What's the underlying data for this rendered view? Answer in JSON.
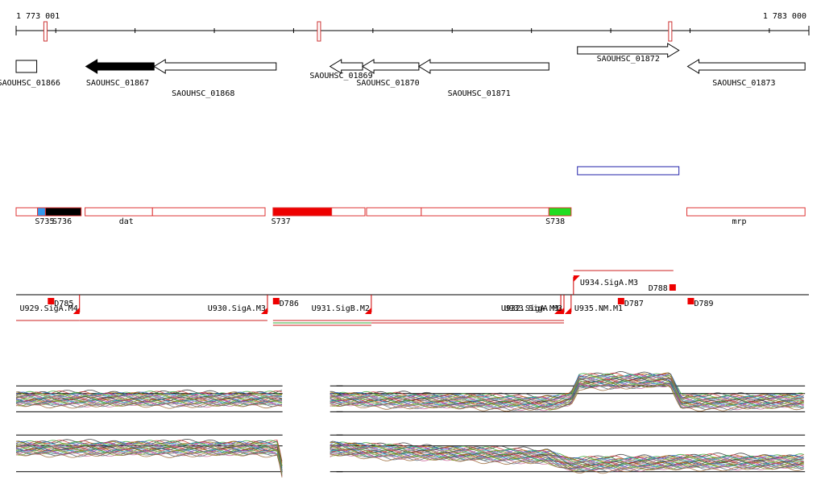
{
  "ruler": {
    "start_label": "1 773 001",
    "end_label": "1 783 000",
    "minor_ticks": [
      1773501,
      1774501,
      1775501,
      1776501,
      1777501,
      1778501,
      1779501,
      1780501,
      1781501,
      1782501
    ],
    "markers": [
      {
        "pos": 1773371,
        "color": "#cc3333"
      },
      {
        "pos": 1776821,
        "color": "#cc3333"
      },
      {
        "pos": 1781251,
        "color": "#cc3333"
      }
    ]
  },
  "genes": [
    {
      "id": "SAOUHSC_01866",
      "start": 1773001,
      "end": 1773261,
      "strand": "+",
      "fill": "#ffffff",
      "label_pos": 1773161,
      "label_row": 1
    },
    {
      "id": "SAOUHSC_01867",
      "start": 1773881,
      "end": 1774741,
      "strand": "-",
      "fill": "#000000",
      "label_pos": 1774281,
      "label_row": 1
    },
    {
      "id": "SAOUHSC_01868",
      "start": 1774741,
      "end": 1776281,
      "strand": "-",
      "fill": "#ffffff",
      "label_pos": 1775361,
      "label_row": 2
    },
    {
      "id": "SAOUHSC_01869",
      "start": 1776961,
      "end": 1777371,
      "strand": "-",
      "fill": "#ffffff",
      "label_pos": 1777101,
      "label_row": 0
    },
    {
      "id": "SAOUHSC_01870",
      "start": 1777371,
      "end": 1778081,
      "strand": "-",
      "fill": "#ffffff",
      "label_pos": 1777691,
      "label_row": 1
    },
    {
      "id": "SAOUHSC_01871",
      "start": 1778081,
      "end": 1779721,
      "strand": "-",
      "fill": "#ffffff",
      "label_pos": 1778841,
      "label_row": 2
    },
    {
      "id": "SAOUHSC_01872",
      "start": 1780081,
      "end": 1781361,
      "strand": "+",
      "fill": "#ffffff",
      "label_pos": 1780721,
      "label_row": 3
    },
    {
      "id": "SAOUHSC_01873",
      "start": 1781471,
      "end": 1782951,
      "strand": "-",
      "fill": "#ffffff",
      "label_pos": 1782181,
      "label_row": 1
    }
  ],
  "feature_box": {
    "start": 1780081,
    "end": 1781361,
    "color": "#2222aa"
  },
  "segments": [
    {
      "start": 1773001,
      "end": 1773271,
      "fill": "#ffffff"
    },
    {
      "start": 1773271,
      "end": 1773371,
      "fill": "#3399ee"
    },
    {
      "start": 1773371,
      "end": 1773821,
      "fill": "#000000"
    },
    {
      "start": 1773871,
      "end": 1774721,
      "fill": "#ffffff"
    },
    {
      "start": 1774721,
      "end": 1776141,
      "fill": "#ffffff"
    },
    {
      "start": 1776241,
      "end": 1776981,
      "fill": "#ee0000"
    },
    {
      "start": 1776981,
      "end": 1777401,
      "fill": "#ffffff"
    },
    {
      "start": 1777421,
      "end": 1778111,
      "fill": "#ffffff"
    },
    {
      "start": 1778111,
      "end": 1779721,
      "fill": "#ffffff"
    },
    {
      "start": 1779721,
      "end": 1780001,
      "fill": "#22dd22"
    },
    {
      "start": 1781461,
      "end": 1782951,
      "fill": "#ffffff"
    }
  ],
  "segment_labels": [
    {
      "text": "S735",
      "pos": 1773361
    },
    {
      "text": "S736",
      "pos": 1773581
    },
    {
      "text": "dat",
      "pos": 1774391
    },
    {
      "text": "S737",
      "pos": 1776341
    },
    {
      "text": "S738",
      "pos": 1779801
    },
    {
      "text": "mrp",
      "pos": 1782121
    }
  ],
  "segment_outline_color": "#dd3333",
  "tss": [
    {
      "label": "U929.SigA.M4",
      "pos": 1773801,
      "label_anchor": "end",
      "level": 0
    },
    {
      "label": "U930.SigA.M3",
      "pos": 1776171,
      "label_anchor": "end",
      "level": 0
    },
    {
      "label": "U931.SigB.M2",
      "pos": 1777481,
      "label_anchor": "end",
      "level": 0
    },
    {
      "label": "U932.SigA.M3",
      "pos": 1779871,
      "label_anchor": "end",
      "level": 0
    },
    {
      "label": "U933.SigA.M3",
      "pos": 1779911,
      "label_anchor": "end",
      "level": 0
    },
    {
      "label": "U934.SigA.M3",
      "pos": 1780031,
      "label_anchor": "start",
      "level": 1
    },
    {
      "label": "U935.NM.M1",
      "pos": 1780001,
      "label_anchor": "start",
      "level": 0
    }
  ],
  "terminators": [
    {
      "label": "D785",
      "pos": 1773441
    },
    {
      "label": "D786",
      "pos": 1776281
    },
    {
      "label": "D787",
      "pos": 1780631
    },
    {
      "label": "D788",
      "pos": 1781281
    },
    {
      "label": "D789",
      "pos": 1781511
    }
  ],
  "transcripts": [
    {
      "start": 1773001,
      "end": 1773801,
      "color": "#cc2222",
      "row": 0
    },
    {
      "start": 1773801,
      "end": 1776171,
      "color": "#cc2222",
      "row": 0
    },
    {
      "start": 1776241,
      "end": 1777481,
      "color": "#cc2222",
      "row": 0
    },
    {
      "start": 1776241,
      "end": 1777481,
      "color": "#33aa33",
      "row": 1
    },
    {
      "start": 1776241,
      "end": 1777481,
      "color": "#cc2222",
      "row": 2
    },
    {
      "start": 1777481,
      "end": 1779911,
      "color": "#cc2222",
      "row": 0
    },
    {
      "start": 1777481,
      "end": 1779911,
      "color": "#cc2222",
      "row": 1
    },
    {
      "start": 1780031,
      "end": 1781291,
      "color": "#cc2222",
      "row": -1
    }
  ],
  "profile_palette": [
    "#333333",
    "#cc3333",
    "#33aa33",
    "#3366cc",
    "#aa7711",
    "#aa33aa",
    "#22aaaa",
    "#888888",
    "#77aa22",
    "#cc6699",
    "#556677",
    "#996633"
  ],
  "profiles": [
    {
      "segments": [
        [
          1773001,
          1776361
        ],
        [
          1777041,
          1777121
        ],
        [
          1776961,
          1782951
        ]
      ],
      "profile": [
        {
          "pos": 1773001,
          "value": 0.5
        },
        {
          "pos": 1776361,
          "value": 0.5
        },
        {
          "pos": 1777001,
          "value": 0.5
        },
        {
          "pos": 1779751,
          "value": 0.4
        },
        {
          "pos": 1780001,
          "value": 0.5
        },
        {
          "pos": 1780101,
          "value": 0.95
        },
        {
          "pos": 1781251,
          "value": 1.0
        },
        {
          "pos": 1781391,
          "value": 0.42
        },
        {
          "pos": 1782951,
          "value": 0.45
        }
      ]
    },
    {
      "segments": [
        [
          1773001,
          1776361
        ],
        [
          1777041,
          1777121
        ],
        [
          1776961,
          1782951
        ]
      ],
      "profile": [
        {
          "pos": 1773001,
          "value": 0.6
        },
        {
          "pos": 1776301,
          "value": 0.6
        },
        {
          "pos": 1776361,
          "value": 0.15
        },
        {
          "pos": 1777001,
          "value": 0.6
        },
        {
          "pos": 1777501,
          "value": 0.55
        },
        {
          "pos": 1779701,
          "value": 0.45
        },
        {
          "pos": 1780001,
          "value": 0.3
        },
        {
          "pos": 1781471,
          "value": 0.35
        },
        {
          "pos": 1782951,
          "value": 0.35
        }
      ]
    }
  ]
}
